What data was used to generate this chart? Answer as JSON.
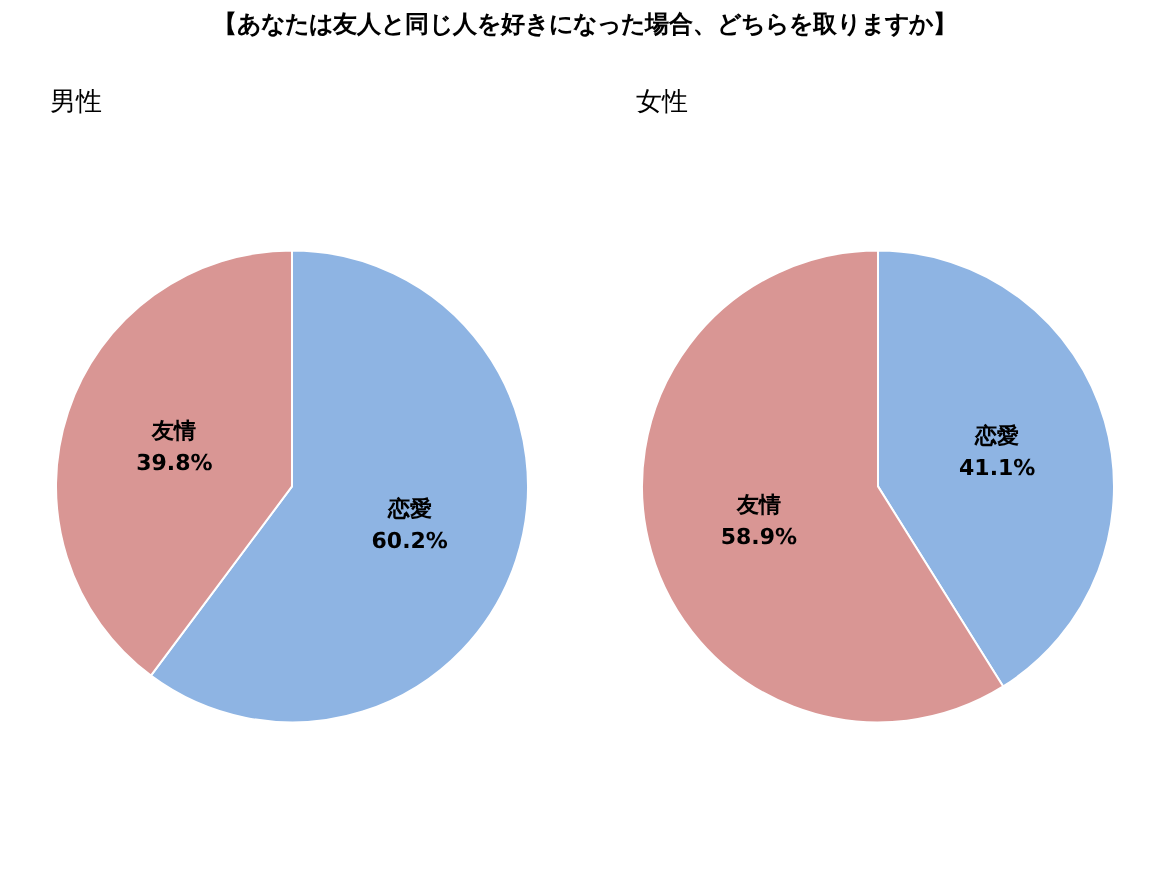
{
  "chart_data": [
    {
      "type": "pie",
      "title": "男性",
      "annotations": [
        "【あなたは友人と同じ人を好きになった場合、どちらを取りますか】"
      ],
      "categories": [
        "恋愛",
        "友情"
      ],
      "values": [
        60.2,
        39.8
      ],
      "colors": [
        "#8eb4e3",
        "#d99694"
      ],
      "value_labels": [
        "60.2%",
        "39.8%"
      ]
    },
    {
      "type": "pie",
      "title": "女性",
      "categories": [
        "恋愛",
        "友情"
      ],
      "values": [
        41.1,
        58.9
      ],
      "colors": [
        "#8eb4e3",
        "#d99694"
      ],
      "value_labels": [
        "41.1%",
        "58.9%"
      ]
    }
  ]
}
